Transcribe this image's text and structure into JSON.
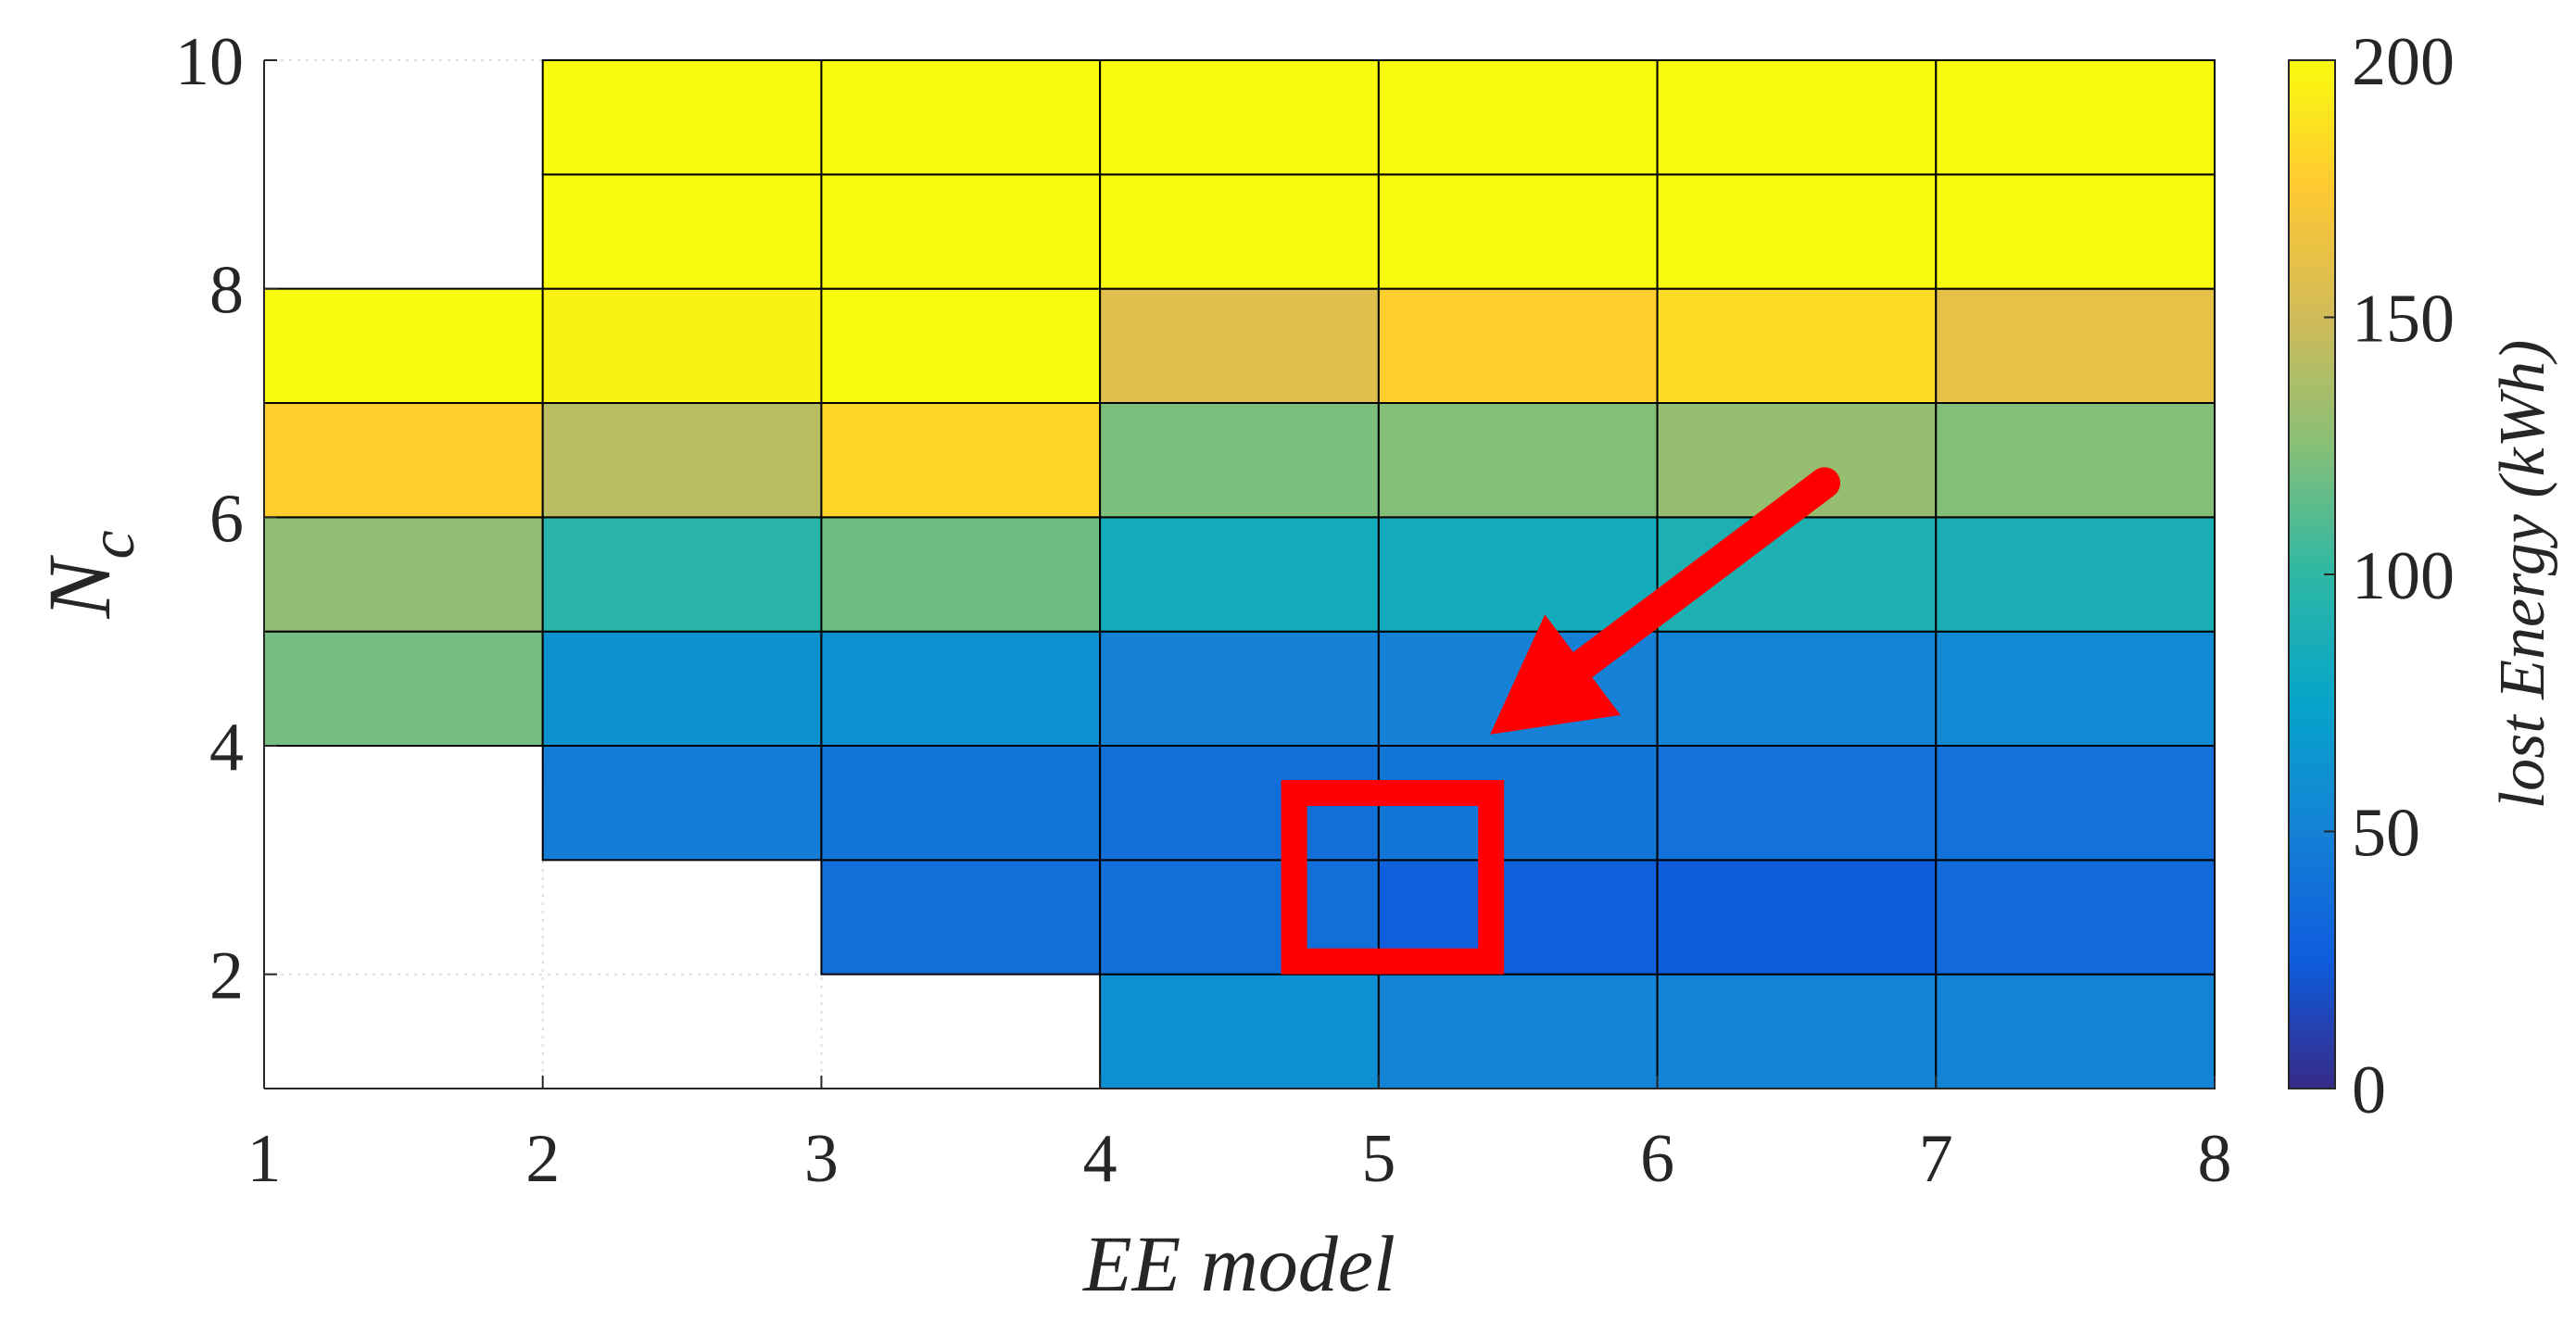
{
  "chart_data": {
    "type": "heatmap",
    "xlabel": "EE model",
    "ylabel": {
      "base": "N",
      "subscript": "c"
    },
    "colorbar_label": "lost Energy (kWh)",
    "xlim": [
      1,
      8
    ],
    "ylim": [
      1,
      10
    ],
    "x_ticks": [
      "1",
      "2",
      "3",
      "4",
      "5",
      "6",
      "7",
      "8"
    ],
    "y_ticks": [
      "2",
      "4",
      "6",
      "8",
      "10"
    ],
    "colorbar": {
      "colormap": "parula",
      "clim": [
        0,
        200
      ],
      "ticks": [
        "0",
        "50",
        "100",
        "150",
        "200"
      ]
    },
    "columns": [
      1,
      2,
      3,
      4,
      5,
      6,
      7
    ],
    "rows": [
      1,
      2,
      3,
      4,
      5,
      6,
      7,
      8,
      9
    ],
    "values": [
      [
        null,
        null,
        null,
        60,
        52,
        52,
        52
      ],
      [
        null,
        null,
        38,
        38,
        28,
        25,
        34
      ],
      [
        null,
        48,
        42,
        38,
        42,
        40,
        40
      ],
      [
        120,
        62,
        60,
        50,
        50,
        52,
        56
      ],
      [
        128,
        96,
        118,
        84,
        84,
        90,
        88
      ],
      [
        178,
        142,
        182,
        122,
        124,
        130,
        124
      ],
      [
        200,
        195,
        200,
        158,
        178,
        185,
        162
      ],
      [
        null,
        200,
        200,
        200,
        200,
        200,
        200
      ],
      [
        null,
        200,
        200,
        200,
        200,
        200,
        200
      ]
    ],
    "annotations": [
      {
        "type": "rectangle",
        "color": "#FF0000",
        "x_range": [
          4.65,
          5.45
        ],
        "y_range": [
          2.0,
          3.7
        ]
      },
      {
        "type": "arrow",
        "color": "#FF0000",
        "from": [
          6.6,
          6.3
        ],
        "to": [
          5.4,
          4.1
        ]
      }
    ]
  }
}
